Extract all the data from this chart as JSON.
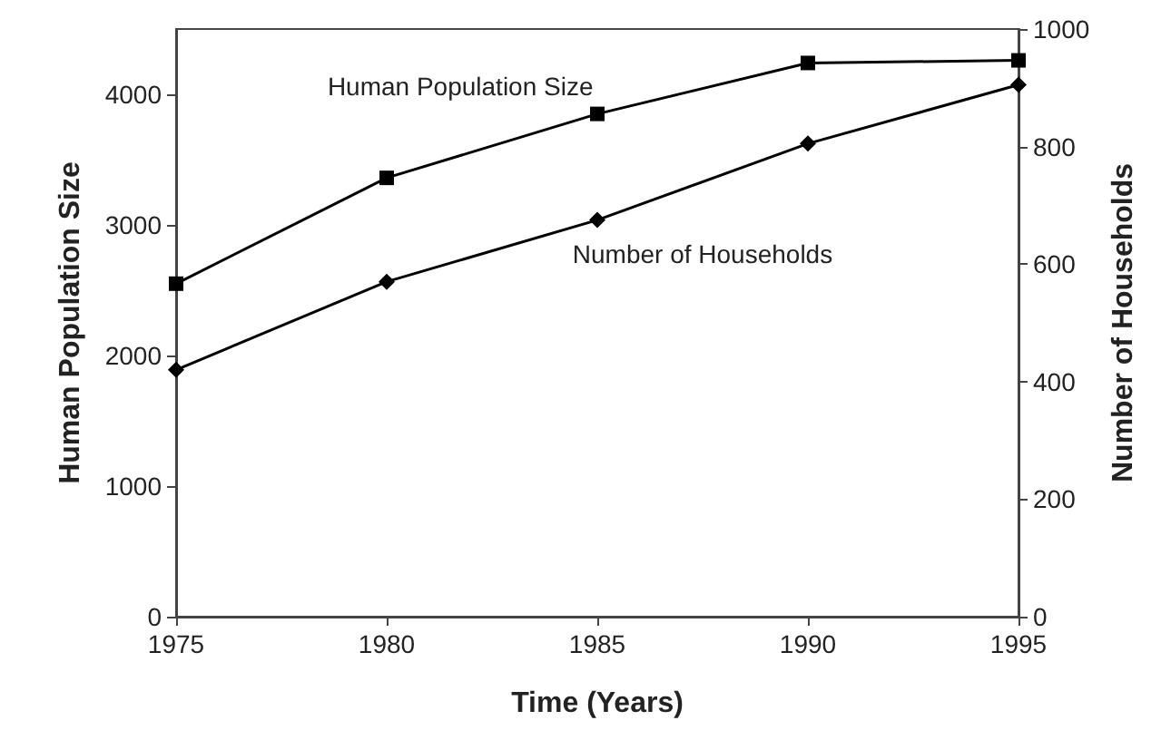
{
  "chart_data": {
    "type": "line",
    "xlabel": "Time (Years)",
    "ylabel": "Human Population Size",
    "y2label": "Number of Households",
    "x": [
      1975,
      1980,
      1985,
      1990,
      1995
    ],
    "series": [
      {
        "name": "Human Population Size",
        "color": "#000000",
        "marker": "square",
        "values": [
          2550,
          3360,
          3850,
          4240,
          4260
        ]
      },
      {
        "name": "Number of Households",
        "color": "#000000",
        "marker": "diamond",
        "axis": "y2",
        "values": [
          420,
          570,
          675,
          805,
          905
        ]
      }
    ],
    "xlim": [
      1975,
      1995
    ],
    "xticks": [
      1975,
      1980,
      1985,
      1990,
      1995
    ],
    "ylim": [
      0,
      4500
    ],
    "yticks": [
      0,
      1000,
      2000,
      3000,
      4000
    ],
    "y2lim": [
      0,
      1000
    ],
    "y2ticks": [
      0,
      200,
      400,
      600,
      800,
      1000
    ],
    "grid": false,
    "legend": false
  }
}
